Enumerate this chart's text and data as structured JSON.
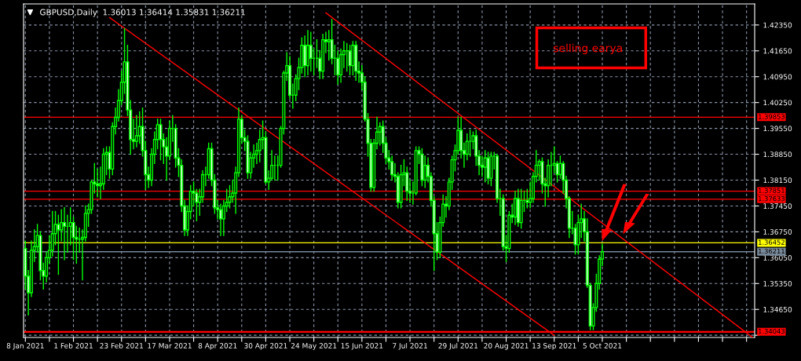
{
  "chart_data": {
    "type": "candlestick",
    "title": "GBPUSD,Daily  1.36013 1.36414 1.35831 1.36211",
    "categories": [
      "8 Jan 2021",
      null,
      null,
      null,
      null,
      null,
      null,
      null,
      null,
      null,
      null,
      null,
      null,
      null,
      null,
      null,
      "1 Feb 2021",
      null,
      null,
      null,
      null,
      null,
      null,
      null,
      null,
      null,
      null,
      null,
      null,
      null,
      null,
      null,
      "23 Feb 2021",
      null,
      null,
      null,
      null,
      null,
      null,
      null,
      null,
      null,
      null,
      null,
      null,
      null,
      null,
      null,
      "17 Mar 2021",
      null,
      null,
      null,
      null,
      null,
      null,
      null,
      null,
      null,
      null,
      null,
      null,
      null,
      null,
      null,
      "8 Apr 2021",
      null,
      null,
      null,
      null,
      null,
      null,
      null,
      null,
      null,
      null,
      null,
      null,
      null,
      null,
      null,
      "30 Apr 2021",
      null,
      null,
      null,
      null,
      null,
      null,
      null,
      null,
      null,
      null,
      null,
      null,
      null,
      null,
      null,
      "24 May 2021",
      null,
      null,
      null,
      null,
      null,
      null,
      null,
      null,
      null,
      null,
      null,
      null,
      null,
      null,
      null,
      "15 Jun 2021",
      null,
      null,
      null,
      null,
      null,
      null,
      null,
      null,
      null,
      null,
      null,
      null,
      null,
      null,
      null,
      "7 Jul 2021",
      null,
      null,
      null,
      null,
      null,
      null,
      null,
      null,
      null,
      null,
      null,
      null,
      null,
      null,
      null,
      "29 Jul 2021",
      null,
      null,
      null,
      null,
      null,
      null,
      null,
      null,
      null,
      null,
      null,
      null,
      null,
      null,
      null,
      "20 Aug 2021",
      null,
      null,
      null,
      null,
      null,
      null,
      null,
      null,
      null,
      null,
      null,
      null,
      null,
      null,
      null,
      "13 Sep 2021",
      null,
      null,
      null,
      null,
      null,
      null,
      null,
      null,
      null,
      null,
      null,
      null,
      null,
      null,
      null,
      "5 Oct 2021",
      null,
      null,
      null,
      null,
      null,
      null,
      null,
      null,
      null,
      null,
      null,
      null,
      null,
      null,
      null,
      null,
      null,
      null,
      null,
      null,
      null,
      null,
      null,
      null,
      null,
      null,
      null,
      null,
      null,
      null,
      null,
      null,
      null,
      null,
      null,
      null,
      null,
      null,
      null,
      null,
      null,
      null,
      null,
      null,
      null,
      null,
      null,
      null,
      null,
      null
    ],
    "ylim": [
      1.3389,
      1.4292
    ],
    "yticks": [
      {
        "value": 1.3395,
        "label": null
      },
      {
        "value": 1.3465,
        "label": "1.34650"
      },
      {
        "value": 1.3535,
        "label": "1.35350"
      },
      {
        "value": 1.3605,
        "label": "1.36050"
      },
      {
        "value": 1.3675,
        "label": "1.36750"
      },
      {
        "value": 1.3745,
        "label": "1.37450"
      },
      {
        "value": 1.3815,
        "label": "1.38150"
      },
      {
        "value": 1.3885,
        "label": "1.38850"
      },
      {
        "value": 1.3955,
        "label": "1.39550"
      },
      {
        "value": 1.4025,
        "label": "1.40250"
      },
      {
        "value": 1.4095,
        "label": "1.40950"
      },
      {
        "value": 1.4165,
        "label": "1.41650"
      },
      {
        "value": 1.4235,
        "label": "1.42350"
      }
    ],
    "grid": true,
    "ref_lines": [
      {
        "axis": "y",
        "value": 1.39853,
        "label": "1.39853",
        "color": "#ff0000"
      },
      {
        "axis": "y",
        "value": 1.37851,
        "label": "1.37851",
        "color": "#ff0000"
      },
      {
        "axis": "y",
        "value": 1.37633,
        "label": "1.37633",
        "color": "#ff0000"
      },
      {
        "axis": "y",
        "value": 1.36452,
        "label": "1.36452",
        "color": "#ffff00"
      },
      {
        "axis": "y",
        "value": 1.36211,
        "label": "1.36211",
        "color": "#778899"
      },
      {
        "axis": "y",
        "value": 1.34043,
        "label": "1.34043",
        "color": "#ff0000"
      }
    ],
    "annotations": [
      "selling earya"
    ],
    "series": [
      {
        "type": "candlestick",
        "color": "#00ff00",
        "colors": [
          "#ffffff",
          "#ffffff",
          "#000000",
          "#000000",
          "#000000",
          "#ffffff",
          "#ffffff",
          "#000000",
          "#000000",
          "#000000",
          "#000000",
          "#ffffff",
          "#000000",
          "#ffffff",
          "#00ff00",
          "#000000",
          "#ffffff",
          "#ffffff",
          "#00ff00",
          "#000000",
          "#000000",
          "#000000",
          "#000000",
          "#ffffff",
          "#ffffff",
          "#000000",
          "#000000",
          "#000000",
          "#ffffff",
          "#000000",
          "#000000",
          "#000000",
          "#000000",
          "#000000",
          "#ffffff",
          "#ffffff",
          "#ffffff",
          "#000000",
          "#000000",
          "#ffffff",
          "#ffffff",
          "#ffffff",
          "#000000",
          "#000000",
          "#000000",
          "#ffffff",
          "#ffffff",
          "#ffffff",
          "#000000",
          "#00ff00",
          "#ffffff",
          "#ffffff",
          "#ffffff",
          "#ffffff",
          "#000000",
          "#000000",
          "#ffffff",
          "#ffffff",
          "#000000",
          "#000000",
          "#00ff00",
          "#000000",
          "#ffffff",
          "#ffffff",
          "#ffffff",
          "#ffffff",
          "#000000",
          "#000000",
          "#000000",
          "#000000",
          "#000000",
          "#000000",
          "#ffffff",
          "#ffffff",
          "#ffffff",
          "#000000",
          "#000000",
          "#000000",
          "#000000",
          "#000000",
          "#ffffff",
          "#000000",
          "#000000",
          "#00ff00",
          "#00ff00",
          "#000000",
          "#000000",
          "#000000",
          "#ffffff",
          "#00ff00",
          "#000000",
          "#000000",
          "#000000",
          "#ffffff",
          "#000000",
          "#ffffff",
          "#00ff00",
          "#00ff00",
          "#ffffff",
          "#000000",
          "#ffffff",
          "#000000",
          "#ffffff",
          "#00ff00",
          "#ffffff",
          "#000000",
          "#000000",
          "#00ff00",
          "#ffffff",
          "#000000",
          "#ffffff",
          "#ffffff",
          "#ffffff",
          "#ffffff",
          "#ffffff",
          "#ffffff",
          "#000000",
          "#000000",
          "#000000",
          "#ffffff",
          "#ffffff",
          "#ffffff",
          "#ffffff",
          "#ffffff",
          "#ffffff",
          "#000000",
          "#000000",
          "#ffffff",
          "#ffffff",
          "#00ff00",
          "#000000",
          "#ffffff",
          "#ffffff",
          "#000000",
          "#ffffff",
          "#ffffff",
          "#ffffff",
          "#ffffff",
          "#000000",
          "#000000",
          "#ffffff",
          "#000000",
          "#000000",
          "#000000",
          "#000000",
          "#ffffff",
          "#ffffff",
          "#000000",
          "#00ff00",
          "#000000",
          "#ffffff",
          "#ffffff",
          "#ffffff",
          "#000000",
          "#ffffff",
          "#000000",
          "#00ff00",
          "#ffffff",
          "#00ff00",
          "#ffffff",
          "#ffffff",
          "#000000",
          "#ffffff",
          "#000000",
          "#ffffff",
          "#000000",
          "#00ff00",
          "#ffffff",
          "#000000",
          "#000000",
          "#000000",
          "#000000",
          "#ffffff",
          "#ffffff",
          "#000000",
          "#00ff00",
          "#000000",
          "#ffffff",
          "#000000",
          "#ffffff",
          "#ffffff",
          "#ffffff",
          "#00ff00",
          "#ffffff",
          "#000000",
          "#000000",
          "#ffffff",
          "#ffffff",
          "#ffffff",
          "#000000",
          "#000000",
          "#000000",
          "#000000",
          null,
          null,
          null,
          null,
          null,
          null,
          null,
          null,
          null,
          null,
          null,
          null,
          null,
          null,
          null,
          null,
          null,
          null,
          null,
          null,
          null,
          null,
          null,
          null,
          null,
          null,
          null,
          null,
          null,
          null,
          null,
          null,
          null,
          null,
          null,
          null,
          null,
          null,
          null,
          null,
          null,
          null,
          null,
          null,
          null,
          null,
          null,
          null,
          null,
          null
        ],
        "ohlc": [
          [
            1.363,
            1.365,
            1.352,
            1.3555
          ],
          [
            1.3555,
            1.357,
            1.345,
            1.351
          ],
          [
            1.351,
            1.365,
            1.35,
            1.3625
          ],
          [
            1.3625,
            1.368,
            1.3595,
            1.3635
          ],
          [
            1.3635,
            1.3695,
            1.362,
            1.3665
          ],
          [
            1.3665,
            1.3675,
            1.3545,
            1.357
          ],
          [
            1.357,
            1.359,
            1.352,
            1.3555
          ],
          [
            1.3555,
            1.362,
            1.354,
            1.3605
          ],
          [
            1.3605,
            1.3665,
            1.359,
            1.3625
          ],
          [
            1.3625,
            1.373,
            1.361,
            1.367
          ],
          [
            1.367,
            1.373,
            1.364,
            1.3695
          ],
          [
            1.3695,
            1.372,
            1.356,
            1.368
          ],
          [
            1.368,
            1.3735,
            1.365,
            1.37
          ],
          [
            1.37,
            1.374,
            1.36,
            1.369
          ],
          [
            1.369,
            1.372,
            1.362,
            1.369
          ],
          [
            1.369,
            1.374,
            1.364,
            1.37
          ],
          [
            1.37,
            1.3715,
            1.36,
            1.366
          ],
          [
            1.366,
            1.369,
            1.359,
            1.3655
          ],
          [
            1.3655,
            1.3685,
            1.362,
            1.3655
          ],
          [
            1.3655,
            1.368,
            1.3545,
            1.366
          ],
          [
            1.366,
            1.3745,
            1.365,
            1.3725
          ],
          [
            1.3725,
            1.375,
            1.369,
            1.3735
          ],
          [
            1.3735,
            1.3815,
            1.3725,
            1.381
          ],
          [
            1.381,
            1.386,
            1.378,
            1.3805
          ],
          [
            1.3805,
            1.3845,
            1.377,
            1.38
          ],
          [
            1.38,
            1.385,
            1.3765,
            1.3805
          ],
          [
            1.3805,
            1.39,
            1.379,
            1.3885
          ],
          [
            1.3885,
            1.3905,
            1.383,
            1.389
          ],
          [
            1.389,
            1.3905,
            1.382,
            1.3845
          ],
          [
            1.3845,
            1.397,
            1.383,
            1.396
          ],
          [
            1.396,
            1.401,
            1.394,
            1.3985
          ],
          [
            1.3985,
            1.406,
            1.3975,
            1.403
          ],
          [
            1.403,
            1.411,
            1.402,
            1.408
          ],
          [
            1.408,
            1.4225,
            1.405,
            1.4135
          ],
          [
            1.4135,
            1.418,
            1.399,
            1.4005
          ],
          [
            1.4005,
            1.403,
            1.3885,
            1.3925
          ],
          [
            1.3925,
            1.398,
            1.39,
            1.392
          ],
          [
            1.392,
            1.399,
            1.3905,
            1.3935
          ],
          [
            1.3935,
            1.4,
            1.3915,
            1.396
          ],
          [
            1.396,
            1.401,
            1.388,
            1.3895
          ],
          [
            1.3895,
            1.392,
            1.379,
            1.383
          ],
          [
            1.383,
            1.385,
            1.3795,
            1.3815
          ],
          [
            1.3815,
            1.39,
            1.38,
            1.3885
          ],
          [
            1.3885,
            1.3945,
            1.386,
            1.3925
          ],
          [
            1.3925,
            1.398,
            1.39,
            1.3965
          ],
          [
            1.3965,
            1.398,
            1.387,
            1.3925
          ],
          [
            1.3925,
            1.394,
            1.386,
            1.3905
          ],
          [
            1.3905,
            1.393,
            1.3815,
            1.388
          ],
          [
            1.388,
            1.3975,
            1.387,
            1.3955
          ],
          [
            1.3955,
            1.399,
            1.392,
            1.3955
          ],
          [
            1.3955,
            1.3965,
            1.385,
            1.3875
          ],
          [
            1.3875,
            1.39,
            1.3825,
            1.3855
          ],
          [
            1.3855,
            1.387,
            1.373,
            1.3745
          ],
          [
            1.3745,
            1.376,
            1.3665,
            1.368
          ],
          [
            1.368,
            1.3745,
            1.3665,
            1.373
          ],
          [
            1.373,
            1.38,
            1.371,
            1.3785
          ],
          [
            1.3785,
            1.381,
            1.3745,
            1.378
          ],
          [
            1.378,
            1.379,
            1.3705,
            1.3755
          ],
          [
            1.3755,
            1.379,
            1.372,
            1.377
          ],
          [
            1.377,
            1.384,
            1.3755,
            1.383
          ],
          [
            1.383,
            1.385,
            1.38,
            1.383
          ],
          [
            1.383,
            1.3915,
            1.382,
            1.39
          ],
          [
            1.39,
            1.3915,
            1.38,
            1.3815
          ],
          [
            1.3815,
            1.383,
            1.3725,
            1.374
          ],
          [
            1.374,
            1.376,
            1.371,
            1.3735
          ],
          [
            1.3735,
            1.375,
            1.3665,
            1.371
          ],
          [
            1.371,
            1.376,
            1.3665,
            1.3745
          ],
          [
            1.3745,
            1.379,
            1.373,
            1.3755
          ],
          [
            1.3755,
            1.38,
            1.374,
            1.377
          ],
          [
            1.377,
            1.3815,
            1.3755,
            1.378
          ],
          [
            1.378,
            1.385,
            1.3725,
            1.3835
          ],
          [
            1.3835,
            1.401,
            1.3825,
            1.398
          ],
          [
            1.398,
            1.399,
            1.3915,
            1.393
          ],
          [
            1.393,
            1.395,
            1.3895,
            1.392
          ],
          [
            1.392,
            1.3935,
            1.382,
            1.3835
          ],
          [
            1.3835,
            1.389,
            1.382,
            1.3875
          ],
          [
            1.3875,
            1.391,
            1.385,
            1.3885
          ],
          [
            1.3885,
            1.3915,
            1.386,
            1.3895
          ],
          [
            1.3895,
            1.395,
            1.3865,
            1.3925
          ],
          [
            1.3925,
            1.3975,
            1.39,
            1.393
          ],
          [
            1.393,
            1.3945,
            1.3805,
            1.381
          ],
          [
            1.381,
            1.384,
            1.379,
            1.382
          ],
          [
            1.382,
            1.3895,
            1.3815,
            1.3855
          ],
          [
            1.3855,
            1.388,
            1.3815,
            1.3855
          ],
          [
            1.3855,
            1.388,
            1.3815,
            1.3855
          ],
          [
            1.3855,
            1.396,
            1.385,
            1.3955
          ],
          [
            1.3955,
            1.411,
            1.394,
            1.4105
          ],
          [
            1.4105,
            1.416,
            1.4085,
            1.4125
          ],
          [
            1.4125,
            1.415,
            1.4035,
            1.4045
          ],
          [
            1.4045,
            1.4075,
            1.401,
            1.4045
          ],
          [
            1.4045,
            1.41,
            1.403,
            1.409
          ],
          [
            1.409,
            1.4145,
            1.406,
            1.412
          ],
          [
            1.412,
            1.42,
            1.4105,
            1.418
          ],
          [
            1.418,
            1.4205,
            1.4095,
            1.4125
          ],
          [
            1.4125,
            1.422,
            1.41,
            1.418
          ],
          [
            1.418,
            1.4215,
            1.411,
            1.4145
          ],
          [
            1.4145,
            1.417,
            1.41,
            1.4145
          ],
          [
            1.4145,
            1.4195,
            1.412,
            1.4145
          ],
          [
            1.4145,
            1.4165,
            1.409,
            1.411
          ],
          [
            1.411,
            1.421,
            1.409,
            1.4195
          ],
          [
            1.4195,
            1.4215,
            1.416,
            1.419
          ],
          [
            1.419,
            1.422,
            1.414,
            1.4195
          ],
          [
            1.4195,
            1.425,
            1.413,
            1.4145
          ],
          [
            1.4145,
            1.418,
            1.41,
            1.4145
          ],
          [
            1.4145,
            1.4165,
            1.4075,
            1.41
          ],
          [
            1.41,
            1.417,
            1.408,
            1.4155
          ],
          [
            1.4155,
            1.419,
            1.412,
            1.4165
          ],
          [
            1.4165,
            1.4185,
            1.411,
            1.4165
          ],
          [
            1.4165,
            1.418,
            1.41,
            1.4125
          ],
          [
            1.4125,
            1.419,
            1.41,
            1.418
          ],
          [
            1.418,
            1.419,
            1.4085,
            1.411
          ],
          [
            1.411,
            1.4135,
            1.408,
            1.4105
          ],
          [
            1.4105,
            1.4125,
            1.406,
            1.408
          ],
          [
            1.408,
            1.4095,
            1.3975,
            1.398
          ],
          [
            1.398,
            1.3995,
            1.388,
            1.3915
          ],
          [
            1.3915,
            1.3925,
            1.3785,
            1.3795
          ],
          [
            1.3795,
            1.3925,
            1.3785,
            1.3915
          ],
          [
            1.3915,
            1.3985,
            1.39,
            1.3945
          ],
          [
            1.3945,
            1.397,
            1.391,
            1.396
          ],
          [
            1.396,
            1.3975,
            1.389,
            1.3915
          ],
          [
            1.3915,
            1.393,
            1.386,
            1.3875
          ],
          [
            1.3875,
            1.3895,
            1.3845,
            1.3865
          ],
          [
            1.3865,
            1.388,
            1.3815,
            1.383
          ],
          [
            1.383,
            1.386,
            1.381,
            1.3825
          ],
          [
            1.3825,
            1.3835,
            1.374,
            1.3755
          ],
          [
            1.3755,
            1.3855,
            1.374,
            1.383
          ],
          [
            1.383,
            1.387,
            1.38,
            1.3835
          ],
          [
            1.3835,
            1.385,
            1.376,
            1.3785
          ],
          [
            1.3785,
            1.3815,
            1.3755,
            1.378
          ],
          [
            1.378,
            1.381,
            1.375,
            1.378
          ],
          [
            1.378,
            1.3905,
            1.3775,
            1.3895
          ],
          [
            1.3895,
            1.3905,
            1.386,
            1.3885
          ],
          [
            1.3885,
            1.39,
            1.38,
            1.3815
          ],
          [
            1.3815,
            1.388,
            1.3795,
            1.3855
          ],
          [
            1.3855,
            1.3875,
            1.381,
            1.3825
          ],
          [
            1.3825,
            1.3835,
            1.3745,
            1.376
          ],
          [
            1.376,
            1.377,
            1.357,
            1.367
          ],
          [
            1.367,
            1.37,
            1.36,
            1.362
          ],
          [
            1.362,
            1.3715,
            1.3605,
            1.37
          ],
          [
            1.37,
            1.3775,
            1.369,
            1.375
          ],
          [
            1.375,
            1.377,
            1.3715,
            1.3745
          ],
          [
            1.3745,
            1.382,
            1.3735,
            1.381
          ],
          [
            1.381,
            1.388,
            1.379,
            1.387
          ],
          [
            1.387,
            1.391,
            1.384,
            1.3895
          ],
          [
            1.3895,
            1.3985,
            1.3885,
            1.395
          ],
          [
            1.395,
            1.3985,
            1.3875,
            1.3895
          ],
          [
            1.3895,
            1.3915,
            1.385,
            1.3885
          ],
          [
            1.3885,
            1.394,
            1.387,
            1.392
          ],
          [
            1.392,
            1.395,
            1.388,
            1.392
          ],
          [
            1.392,
            1.3945,
            1.39,
            1.3935
          ],
          [
            1.3935,
            1.395,
            1.3855,
            1.388
          ],
          [
            1.388,
            1.3895,
            1.383,
            1.3855
          ],
          [
            1.3855,
            1.388,
            1.3825,
            1.385
          ],
          [
            1.385,
            1.3895,
            1.381,
            1.3875
          ],
          [
            1.3875,
            1.389,
            1.3805,
            1.382
          ],
          [
            1.382,
            1.389,
            1.38,
            1.388
          ],
          [
            1.388,
            1.389,
            1.3845,
            1.388
          ],
          [
            1.388,
            1.3885,
            1.3755,
            1.3765
          ],
          [
            1.3765,
            1.379,
            1.372,
            1.3765
          ],
          [
            1.3765,
            1.3775,
            1.3625,
            1.3635
          ],
          [
            1.3635,
            1.3665,
            1.3595,
            1.363
          ],
          [
            1.363,
            1.373,
            1.362,
            1.372
          ],
          [
            1.372,
            1.375,
            1.37,
            1.3715
          ],
          [
            1.3715,
            1.3785,
            1.3695,
            1.3765
          ],
          [
            1.3765,
            1.379,
            1.369,
            1.37
          ],
          [
            1.37,
            1.379,
            1.3685,
            1.376
          ],
          [
            1.376,
            1.3785,
            1.373,
            1.376
          ],
          [
            1.376,
            1.379,
            1.374,
            1.3755
          ],
          [
            1.3755,
            1.381,
            1.374,
            1.3765
          ],
          [
            1.3765,
            1.3835,
            1.3755,
            1.3825
          ],
          [
            1.3825,
            1.3895,
            1.381,
            1.3855
          ],
          [
            1.3855,
            1.387,
            1.3815,
            1.3865
          ],
          [
            1.3865,
            1.3875,
            1.378,
            1.3805
          ],
          [
            1.3805,
            1.382,
            1.3745,
            1.38
          ],
          [
            1.38,
            1.387,
            1.377,
            1.3855
          ],
          [
            1.3855,
            1.389,
            1.38,
            1.3855
          ],
          [
            1.3855,
            1.3905,
            1.3835,
            1.386
          ],
          [
            1.386,
            1.3865,
            1.381,
            1.383
          ],
          [
            1.383,
            1.388,
            1.382,
            1.386
          ],
          [
            1.386,
            1.3865,
            1.378,
            1.3815
          ],
          [
            1.3815,
            1.3825,
            1.374,
            1.3765
          ],
          [
            1.3765,
            1.377,
            1.366,
            1.3685
          ],
          [
            1.3685,
            1.373,
            1.367,
            1.3685
          ],
          [
            1.3685,
            1.3695,
            1.3615,
            1.364
          ],
          [
            1.364,
            1.372,
            1.3615,
            1.37
          ],
          [
            1.37,
            1.375,
            1.366,
            1.371
          ],
          [
            1.371,
            1.373,
            1.365,
            1.3675
          ],
          [
            1.3675,
            1.371,
            1.3525,
            1.353
          ],
          [
            1.353,
            1.3535,
            1.341,
            1.342
          ],
          [
            1.342,
            1.348,
            1.341,
            1.347
          ],
          [
            1.347,
            1.356,
            1.346,
            1.3535
          ],
          [
            1.3535,
            1.361,
            1.352,
            1.3601
          ],
          [
            1.36013,
            1.36414,
            1.35831,
            1.36211
          ],
          null,
          null,
          null,
          null,
          null,
          null,
          null,
          null,
          null,
          null,
          null,
          null,
          null,
          null,
          null,
          null,
          null,
          null,
          null,
          null,
          null,
          null,
          null,
          null,
          null,
          null,
          null,
          null,
          null,
          null,
          null,
          null,
          null,
          null,
          null,
          null,
          null,
          null,
          null,
          null,
          null,
          null,
          null,
          null,
          null,
          null,
          null,
          null,
          null,
          null
        ]
      },
      {
        "type": "line",
        "color": "#ff0000",
        "values": [
          null,
          null,
          null,
          null,
          null,
          null,
          null,
          null,
          null,
          null,
          null,
          null,
          null,
          null,
          null,
          null,
          null,
          null,
          null,
          null,
          null,
          null,
          null,
          null,
          null,
          null,
          null,
          null,
          null,
          null,
          null,
          null,
          null,
          null,
          null,
          null,
          null,
          null,
          null,
          null,
          null,
          null,
          null,
          null,
          null,
          null,
          null,
          null,
          null,
          null,
          null,
          null,
          null,
          null,
          null,
          null,
          null,
          null,
          null,
          null,
          null,
          null,
          null,
          null,
          null,
          null,
          null,
          null,
          null,
          null,
          null,
          null,
          null,
          null,
          null,
          null,
          null,
          null,
          null,
          null,
          null,
          null,
          null,
          null,
          null,
          null,
          null,
          null,
          null,
          null,
          null,
          null,
          null,
          null,
          null,
          null,
          null,
          null,
          null,
          null,
          1.4268,
          null,
          null,
          null,
          null,
          null,
          null,
          null,
          null,
          null,
          null,
          null,
          null,
          null,
          null,
          null,
          null,
          null,
          null,
          null,
          null,
          null,
          null,
          null,
          null,
          null,
          null,
          null,
          null,
          null,
          null,
          null,
          null,
          null,
          null,
          null,
          null,
          null,
          null,
          null,
          null,
          null,
          null,
          null,
          null,
          null,
          null,
          null,
          null,
          null,
          null,
          null,
          null,
          null,
          null,
          null,
          null,
          null,
          null,
          null,
          null,
          null,
          null,
          null,
          null,
          null,
          null,
          null,
          null,
          null,
          null,
          null,
          null,
          null,
          null,
          null,
          null,
          null,
          null,
          null,
          null,
          null,
          null,
          null,
          null,
          null,
          null,
          null,
          null,
          null,
          null,
          null,
          null,
          null,
          null,
          null,
          null,
          null,
          null,
          null,
          null,
          null,
          null,
          null,
          null,
          null,
          null,
          null,
          null,
          null,
          null,
          null,
          null,
          null,
          null,
          null,
          null,
          null,
          null,
          null,
          null,
          null,
          null,
          null,
          null,
          null,
          null,
          null,
          null,
          null,
          null,
          null,
          null,
          null,
          null,
          null,
          null,
          null,
          null,
          null,
          null,
          null,
          1.3389
        ]
      },
      {
        "type": "line",
        "color": "#ff0000",
        "values": [
          null,
          null,
          null,
          null,
          null,
          null,
          null,
          null,
          null,
          null,
          null,
          null,
          null,
          null,
          null,
          null,
          null,
          null,
          null,
          null,
          null,
          null,
          null,
          null,
          null,
          null,
          null,
          null,
          1.4255,
          null,
          null,
          null,
          null,
          null,
          null,
          null,
          null,
          null,
          null,
          null,
          null,
          null,
          null,
          null,
          null,
          null,
          null,
          null,
          null,
          null,
          null,
          null,
          null,
          null,
          null,
          null,
          null,
          null,
          null,
          null,
          null,
          null,
          null,
          null,
          null,
          null,
          null,
          null,
          null,
          null,
          null,
          null,
          null,
          null,
          null,
          null,
          null,
          null,
          null,
          null,
          null,
          null,
          null,
          null,
          null,
          null,
          null,
          null,
          null,
          null,
          null,
          null,
          null,
          null,
          null,
          null,
          null,
          null,
          null,
          null,
          null,
          null,
          null,
          null,
          null,
          null,
          null,
          null,
          null,
          null,
          null,
          null,
          null,
          null,
          null,
          null,
          null,
          null,
          null,
          null,
          null,
          null,
          null,
          null,
          null,
          null,
          null,
          null,
          null,
          null,
          null,
          null,
          null,
          null,
          null,
          null,
          null,
          null,
          null,
          null,
          null,
          null,
          null,
          null,
          null,
          null,
          null,
          null,
          null,
          null,
          null,
          null,
          null,
          null,
          null,
          null,
          null,
          null,
          null,
          null,
          null,
          null,
          null,
          null,
          null,
          null,
          null,
          null,
          null,
          null,
          null,
          null,
          null,
          null,
          null,
          null,
          1.3395,
          null,
          null,
          null,
          null,
          null,
          null,
          null,
          null,
          null,
          null,
          null,
          null,
          null,
          null,
          null,
          null,
          null,
          null,
          null,
          null,
          null,
          null,
          null,
          null,
          null,
          null,
          null,
          null,
          null,
          null,
          null,
          null,
          null,
          null,
          null,
          null,
          null,
          null,
          null,
          null,
          null,
          null,
          null,
          null,
          null,
          null,
          null,
          null,
          null,
          null,
          null,
          null,
          null,
          null,
          null,
          null,
          null,
          null,
          null,
          null,
          null,
          null,
          null,
          null,
          null,
          null
        ]
      }
    ]
  }
}
